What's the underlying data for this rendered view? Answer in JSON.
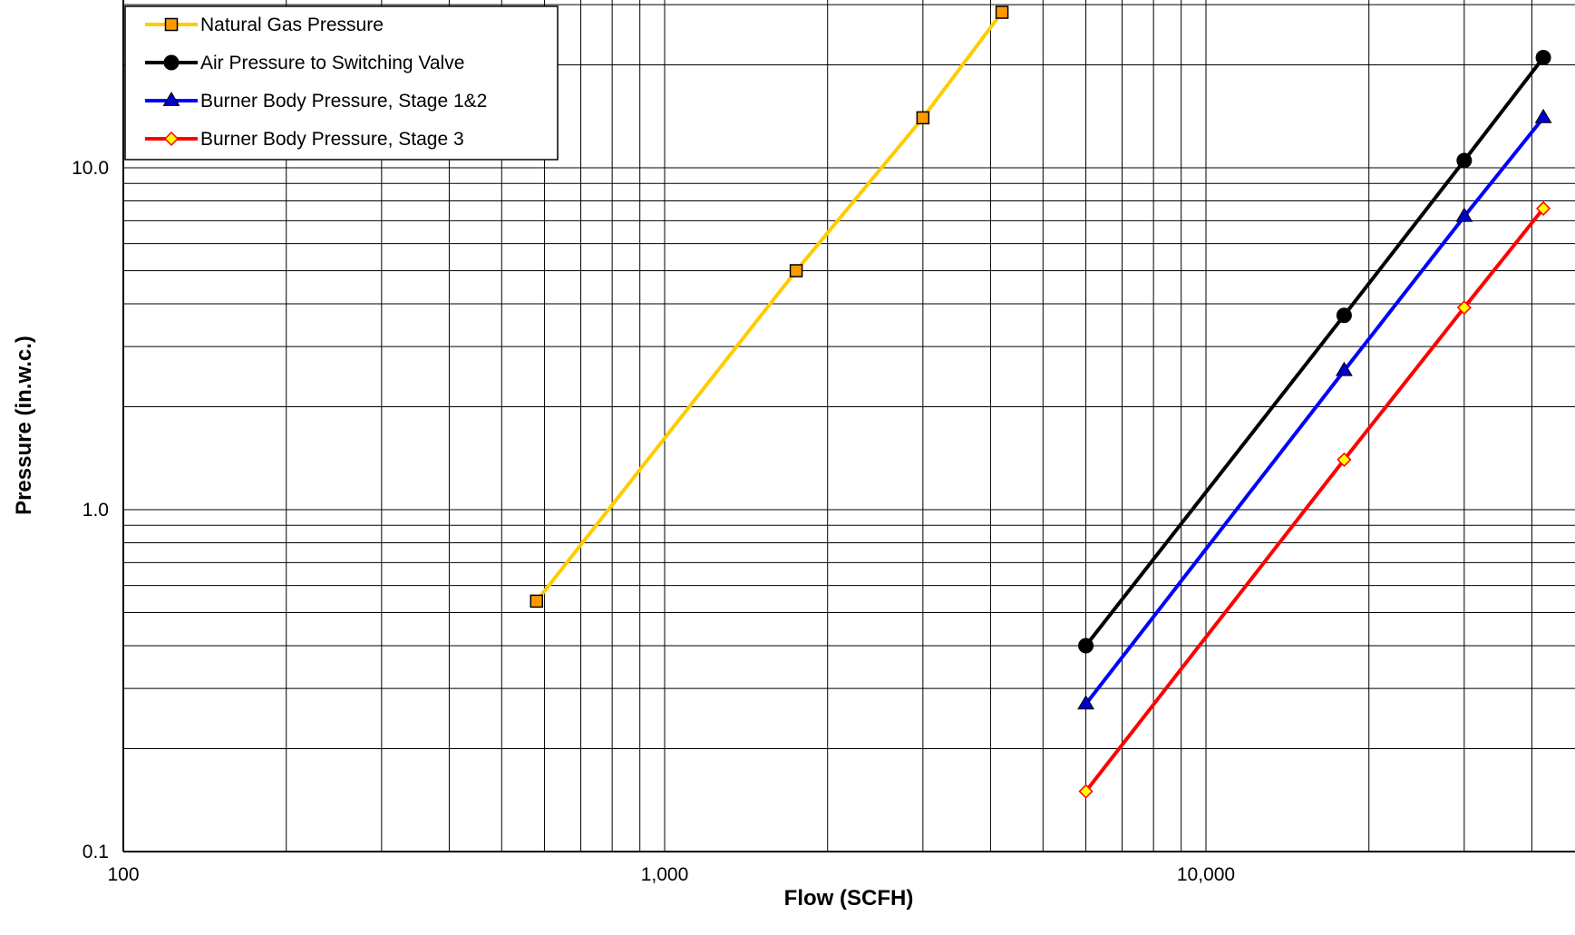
{
  "chart_data": {
    "type": "line",
    "title": "",
    "xlabel": "Flow (SCFH)",
    "ylabel": "Pressure (in.w.c.)",
    "x_scale": "log",
    "y_scale": "log",
    "xlim": [
      100,
      50000
    ],
    "ylim": [
      0.1,
      30
    ],
    "x_ticks": [
      {
        "value": 100,
        "label": "100"
      },
      {
        "value": 1000,
        "label": "1,000"
      },
      {
        "value": 10000,
        "label": "10,000"
      }
    ],
    "y_ticks": [
      {
        "value": 0.1,
        "label": "0.1"
      },
      {
        "value": 1,
        "label": "1.0"
      },
      {
        "value": 10,
        "label": "10.0"
      }
    ],
    "grid": true,
    "legend_position": "top-left",
    "series": [
      {
        "name": "Natural Gas Pressure",
        "color": "#FFCC00",
        "marker": "square",
        "marker_fill": "#FF9900",
        "points": [
          [
            580,
            0.54
          ],
          [
            1750,
            5.0
          ],
          [
            3000,
            14.0
          ],
          [
            4200,
            28.5
          ]
        ]
      },
      {
        "name": "Air Pressure to Switching Valve",
        "color": "#000000",
        "marker": "circle",
        "marker_fill": "#000000",
        "points": [
          [
            6000,
            0.4
          ],
          [
            18000,
            3.7
          ],
          [
            30000,
            10.5
          ],
          [
            42000,
            21.0
          ]
        ]
      },
      {
        "name": "Burner Body Pressure, Stage 1&2",
        "color": "#0000FF",
        "marker": "triangle",
        "marker_fill": "#0000CC",
        "points": [
          [
            6000,
            0.27
          ],
          [
            18000,
            2.55
          ],
          [
            30000,
            7.2
          ],
          [
            42000,
            14.0
          ]
        ]
      },
      {
        "name": "Burner Body Pressure, Stage 3",
        "color": "#FF0000",
        "marker": "diamond",
        "marker_fill": "#FFFF00",
        "points": [
          [
            6000,
            0.15
          ],
          [
            18000,
            1.4
          ],
          [
            30000,
            3.9
          ],
          [
            42000,
            7.6
          ]
        ]
      }
    ]
  }
}
